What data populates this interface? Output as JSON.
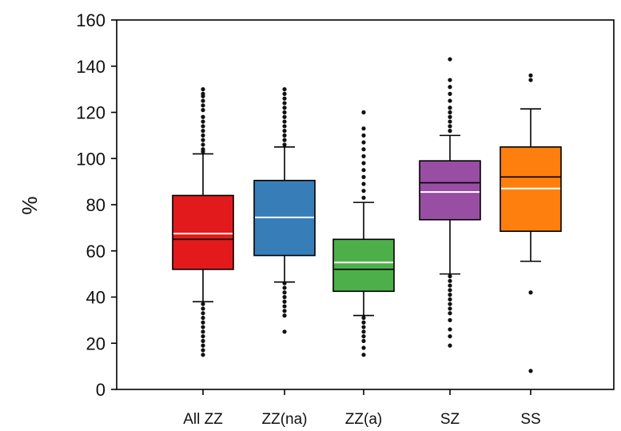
{
  "chart_data": {
    "type": "box",
    "title": "",
    "xlabel": "",
    "ylabel": "%",
    "ylim": [
      0,
      160
    ],
    "yticks": [
      0,
      20,
      40,
      60,
      80,
      100,
      120,
      140,
      160
    ],
    "grid": false,
    "categories": [
      "All ZZ",
      "ZZ(na)",
      "ZZ(a)",
      "SZ",
      "SS"
    ],
    "series": [
      {
        "category": "All ZZ",
        "color": "#e31a1c",
        "q1": 52,
        "median": 65,
        "mean": 67.5,
        "q3": 84,
        "whisker_low": 38,
        "whisker_high": 102,
        "outliers": [
          130,
          128,
          127,
          125,
          123,
          121,
          118,
          116,
          114,
          112,
          110,
          108,
          106,
          104,
          103,
          37,
          35,
          33,
          31,
          29,
          27,
          25,
          23,
          21,
          19,
          17,
          15
        ]
      },
      {
        "category": "ZZ(na)",
        "color": "#377eb8",
        "q1": 58,
        "median": 74.5,
        "mean": 74.5,
        "q3": 90.5,
        "whisker_low": 46.5,
        "whisker_high": 105,
        "outliers": [
          130,
          128,
          126,
          124,
          122,
          120,
          118,
          116,
          114,
          112,
          110,
          108,
          106,
          46,
          44,
          42,
          40,
          38,
          36,
          34,
          32,
          25
        ]
      },
      {
        "category": "ZZ(a)",
        "color": "#4daf4a",
        "q1": 42.5,
        "median": 52,
        "mean": 55,
        "q3": 65,
        "whisker_low": 32,
        "whisker_high": 81,
        "outliers": [
          120,
          113,
          110,
          107,
          104,
          101,
          98,
          95,
          92,
          89,
          86,
          83,
          31,
          29,
          27,
          25,
          23,
          21,
          18,
          15
        ]
      },
      {
        "category": "SZ",
        "color": "#984ea3",
        "q1": 73.5,
        "median": 89.5,
        "mean": 85.5,
        "q3": 99,
        "whisker_low": 50,
        "whisker_high": 110,
        "outliers": [
          143,
          134,
          131,
          128,
          125,
          122,
          120,
          118,
          116,
          114,
          112,
          49,
          47,
          45,
          43,
          41,
          39,
          37,
          35,
          33,
          30,
          26,
          23,
          19
        ]
      },
      {
        "category": "SS",
        "color": "#ff7f0e",
        "q1": 68.5,
        "median": 92,
        "mean": 87,
        "q3": 105,
        "whisker_low": 55.5,
        "whisker_high": 121.5,
        "outliers": [
          136,
          134,
          42,
          8
        ]
      }
    ]
  }
}
